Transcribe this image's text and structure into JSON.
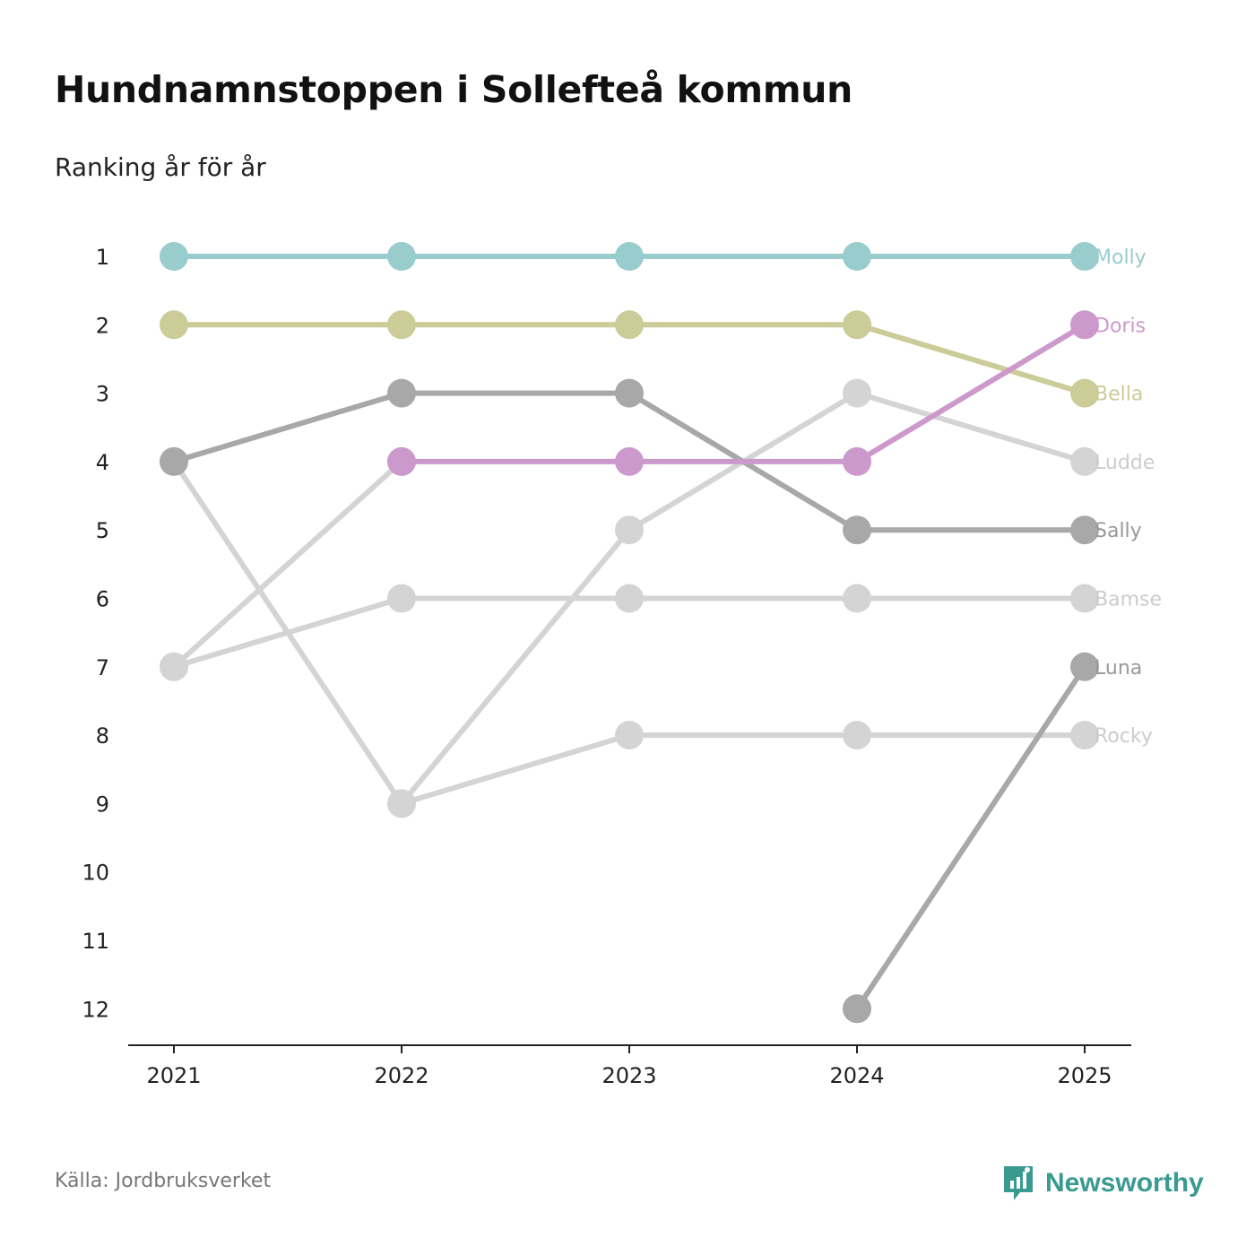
{
  "title": "Hundnamnstoppen i Sollefteå kommun",
  "subtitle": "Ranking år för år",
  "source": "Källa: Jordbruksverket",
  "brand": {
    "name": "Newsworthy",
    "color": "#3a9a91",
    "icon": "newsworthy-logo-icon"
  },
  "chart_data": {
    "type": "line",
    "title": "Hundnamnstoppen i Sollefteå kommun",
    "subtitle": "Ranking år för år",
    "xlabel": "",
    "ylabel": "",
    "x": [
      "2021",
      "2022",
      "2023",
      "2024",
      "2025"
    ],
    "y_ticks": [
      "1",
      "2",
      "3",
      "4",
      "5",
      "6",
      "7",
      "8",
      "9",
      "10",
      "11",
      "12"
    ],
    "ylim": [
      1,
      12
    ],
    "y_inverted": true,
    "grid": false,
    "series": [
      {
        "name": "Rocky",
        "color": "#d4d4d4",
        "values": [
          null,
          9,
          8,
          8,
          8
        ]
      },
      {
        "name": "Bamse",
        "color": "#d4d4d4",
        "values": [
          7,
          6,
          6,
          6,
          6
        ]
      },
      {
        "name": "Ludde",
        "color": "#d4d4d4",
        "values": [
          4,
          9,
          5,
          3,
          4
        ]
      },
      {
        "name": "Ludde2",
        "display": false,
        "color": "#d4d4d4",
        "values": [
          7,
          4,
          null,
          null,
          null
        ]
      },
      {
        "name": "Luna",
        "color": "#a8a8a8",
        "values": [
          null,
          null,
          null,
          12,
          7
        ]
      },
      {
        "name": "Sally",
        "color": "#a8a8a8",
        "values": [
          4,
          3,
          3,
          5,
          5
        ]
      },
      {
        "name": "Bella",
        "color": "#cccc99",
        "values": [
          2,
          2,
          2,
          2,
          3
        ]
      },
      {
        "name": "Doris",
        "color": "#cc99cc",
        "values": [
          null,
          4,
          4,
          4,
          2
        ]
      },
      {
        "name": "Molly",
        "color": "#99cccc",
        "values": [
          1,
          1,
          1,
          1,
          1
        ]
      }
    ],
    "end_labels": [
      {
        "name": "Molly",
        "rank": 1,
        "color": "#99cccc"
      },
      {
        "name": "Doris",
        "rank": 2,
        "color": "#cc99cc"
      },
      {
        "name": "Bella",
        "rank": 3,
        "color": "#cccc99"
      },
      {
        "name": "Ludde",
        "rank": 4,
        "color": "#cccccc"
      },
      {
        "name": "Sally",
        "rank": 5,
        "color": "#999999"
      },
      {
        "name": "Bamse",
        "rank": 6,
        "color": "#cccccc"
      },
      {
        "name": "Luna",
        "rank": 7,
        "color": "#999999"
      },
      {
        "name": "Rocky",
        "rank": 8,
        "color": "#cccccc"
      }
    ]
  }
}
